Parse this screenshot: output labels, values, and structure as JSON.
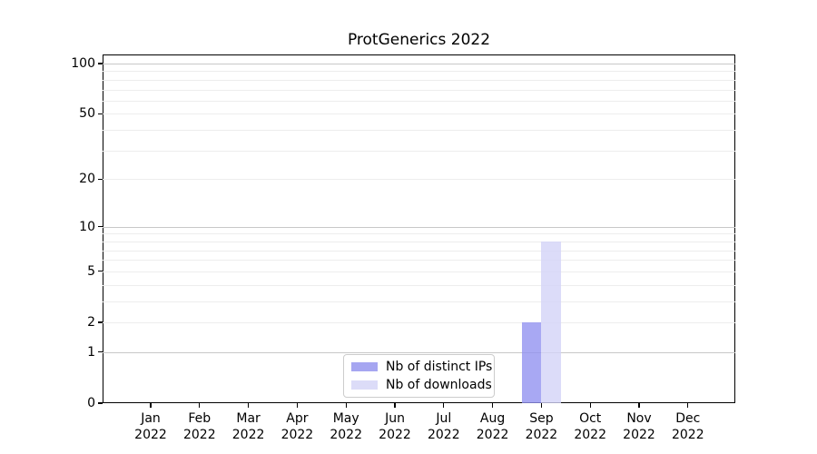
{
  "chart_data": {
    "type": "bar",
    "title": "ProtGenerics 2022",
    "categories": [
      "Jan",
      "Feb",
      "Mar",
      "Apr",
      "May",
      "Jun",
      "Jul",
      "Aug",
      "Sep",
      "Oct",
      "Nov",
      "Dec"
    ],
    "category_year": "2022",
    "series": [
      {
        "name": "Nb of distinct IPs",
        "color": "#a6a6f1",
        "bar_fill": "rgba(146,146,240,0.8)",
        "values": [
          0,
          0,
          0,
          0,
          0,
          0,
          0,
          0,
          2,
          0,
          0,
          0
        ]
      },
      {
        "name": "Nb of downloads",
        "color": "#dcdcf8",
        "bar_fill": "rgba(211,211,248,0.8)",
        "values": [
          0,
          0,
          0,
          0,
          0,
          0,
          0,
          0,
          8,
          0,
          0,
          0
        ]
      }
    ],
    "xlabel": "",
    "ylabel": "",
    "y_scale": "log(1+x)",
    "y_ticks": [
      0,
      1,
      2,
      5,
      10,
      20,
      50,
      100
    ],
    "y_major_gridlines": [
      1,
      10,
      100
    ],
    "y_minor_gridlines": [
      2,
      3,
      4,
      5,
      6,
      7,
      8,
      9,
      20,
      30,
      40,
      50,
      60,
      70,
      80,
      90
    ],
    "ylim": [
      0,
      113
    ],
    "grid": "horizontal",
    "legend_position": "lower center"
  }
}
